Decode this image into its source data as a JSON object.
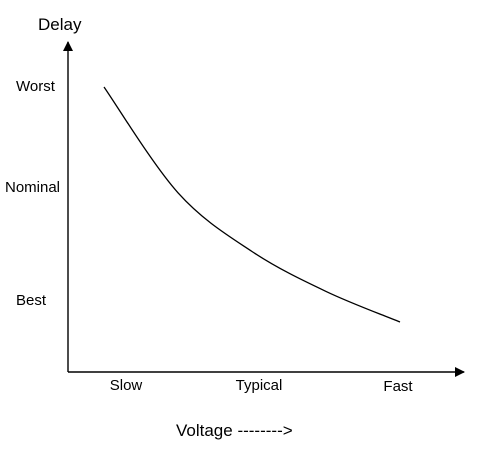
{
  "chart_data": {
    "type": "line",
    "title": "",
    "xlabel": "Voltage -------->",
    "ylabel": "Delay",
    "x_categories": [
      "Slow",
      "Typical",
      "Fast"
    ],
    "y_categories": [
      "Worst",
      "Nominal",
      "Best"
    ],
    "series": [
      {
        "values": [
          {
            "x": 0.0,
            "y": 1.0
          },
          {
            "x": 0.25,
            "y": 0.55
          },
          {
            "x": 0.5,
            "y": 0.3
          },
          {
            "x": 0.75,
            "y": 0.13
          },
          {
            "x": 1.0,
            "y": 0.0
          }
        ]
      }
    ],
    "grid": false,
    "legend": "none",
    "colors": {
      "axis": "#000000",
      "line": "#000000"
    }
  }
}
